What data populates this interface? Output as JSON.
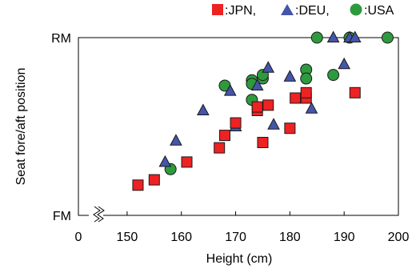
{
  "chart_data": {
    "type": "scatter",
    "xlabel": "Height (cm)",
    "ylabel": "Seat fore/aft position",
    "x_ticks": [
      {
        "value": 0,
        "label": "0"
      },
      {
        "value": 150,
        "label": "150"
      },
      {
        "value": 160,
        "label": "160"
      },
      {
        "value": 170,
        "label": "170"
      },
      {
        "value": 180,
        "label": "180"
      },
      {
        "value": 190,
        "label": "190"
      },
      {
        "value": 200,
        "label": "200"
      }
    ],
    "x_axis_break": true,
    "xlim": [
      145,
      200
    ],
    "y_labels": {
      "top": "RM",
      "bottom": "FM"
    },
    "ylim": [
      0,
      1
    ],
    "legend_position": "top-right",
    "legend": [
      {
        "marker": "square",
        "label": ":JPN,"
      },
      {
        "marker": "triangle",
        "label": ":DEU,"
      },
      {
        "marker": "circle",
        "label": ":USA"
      }
    ],
    "colors": {
      "JPN": "#ee2222",
      "DEU": "#4455aa",
      "USA": "#2e9a3e",
      "edge": "#1a1a1a"
    },
    "series": [
      {
        "name": "JPN",
        "marker": "square",
        "points": [
          [
            152,
            0.17
          ],
          [
            155,
            0.2
          ],
          [
            161,
            0.3
          ],
          [
            167,
            0.38
          ],
          [
            168,
            0.45
          ],
          [
            170,
            0.52
          ],
          [
            174,
            0.59
          ],
          [
            174,
            0.61
          ],
          [
            175,
            0.41
          ],
          [
            176,
            0.62
          ],
          [
            180,
            0.49
          ],
          [
            181,
            0.66
          ],
          [
            183,
            0.66
          ],
          [
            183,
            0.69
          ],
          [
            192,
            0.69
          ]
        ]
      },
      {
        "name": "DEU",
        "marker": "triangle",
        "points": [
          [
            157,
            0.3
          ],
          [
            159,
            0.42
          ],
          [
            164,
            0.59
          ],
          [
            169,
            0.7
          ],
          [
            170,
            0.5
          ],
          [
            174,
            0.73
          ],
          [
            176,
            0.83
          ],
          [
            177,
            0.51
          ],
          [
            180,
            0.78
          ],
          [
            184,
            0.6
          ],
          [
            188,
            1.0
          ],
          [
            190,
            0.85
          ],
          [
            191,
            1.0
          ],
          [
            192,
            1.0
          ]
        ]
      },
      {
        "name": "USA",
        "marker": "circle",
        "points": [
          [
            158,
            0.26
          ],
          [
            168,
            0.73
          ],
          [
            173,
            0.65
          ],
          [
            173,
            0.76
          ],
          [
            173,
            0.74
          ],
          [
            175,
            0.77
          ],
          [
            175,
            0.79
          ],
          [
            183,
            0.82
          ],
          [
            183,
            0.77
          ],
          [
            185,
            1.0
          ],
          [
            188,
            0.79
          ],
          [
            191,
            1.0
          ],
          [
            198,
            1.0
          ]
        ]
      }
    ]
  }
}
